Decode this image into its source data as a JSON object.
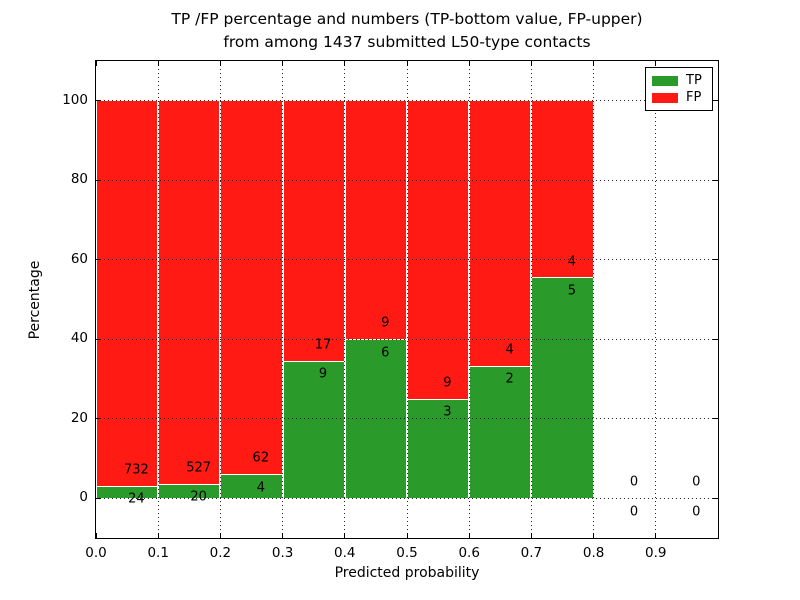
{
  "chart_data": {
    "type": "bar",
    "stacked": true,
    "title": "TP /FP percentage and numbers (TP-bottom value, FP-upper)",
    "subtitle": "from among 1437 submitted L50-type contacts",
    "xlabel": "Predicted probability",
    "ylabel": "Percentage",
    "xlim": [
      0.0,
      1.0
    ],
    "ylim": [
      -10,
      110
    ],
    "bar_width": 0.1,
    "grid": "dotted",
    "legend_position": "upper right",
    "total_contacts": 1437,
    "xticks": [
      "0.0",
      "0.1",
      "0.2",
      "0.3",
      "0.4",
      "0.5",
      "0.6",
      "0.7",
      "0.8",
      "0.9"
    ],
    "yticks": [
      0,
      20,
      40,
      60,
      80,
      100
    ],
    "bins": [
      {
        "x": 0.0,
        "tp": 24,
        "fp": 732
      },
      {
        "x": 0.1,
        "tp": 20,
        "fp": 527
      },
      {
        "x": 0.2,
        "tp": 4,
        "fp": 62
      },
      {
        "x": 0.3,
        "tp": 9,
        "fp": 17
      },
      {
        "x": 0.4,
        "tp": 6,
        "fp": 9
      },
      {
        "x": 0.5,
        "tp": 3,
        "fp": 9
      },
      {
        "x": 0.6,
        "tp": 2,
        "fp": 4
      },
      {
        "x": 0.7,
        "tp": 5,
        "fp": 4
      },
      {
        "x": 0.8,
        "tp": 0,
        "fp": 0
      },
      {
        "x": 0.9,
        "tp": 0,
        "fp": 0
      }
    ]
  },
  "legend": {
    "items": [
      {
        "label": "TP",
        "color": "#2a9a2a"
      },
      {
        "label": "FP",
        "color": "#ff1b13"
      }
    ]
  },
  "colors": {
    "tp": "#2a9a2a",
    "fp": "#ff1b13",
    "grid": "#000000",
    "axes": "#000000",
    "background": "#ffffff"
  }
}
